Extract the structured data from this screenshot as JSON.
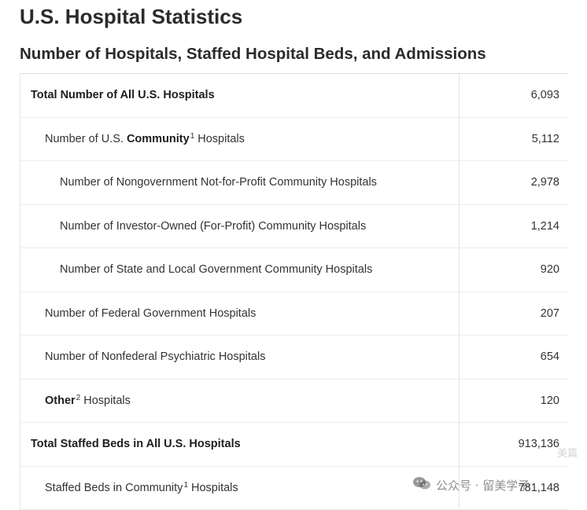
{
  "page": {
    "title": "U.S. Hospital Statistics",
    "section_title": "Number of Hospitals, Staffed Hospital Beds, and Admissions"
  },
  "rows": [
    {
      "label": "Total Number of All U.S. Hospitals",
      "value": "6,093"
    },
    {
      "pre": "Number of U.S. ",
      "bold": "Community",
      "sup": "1",
      "post": "Hospitals",
      "value": "5,112"
    },
    {
      "label": "Number of Nongovernment Not-for-Profit Community Hospitals",
      "value": "2,978"
    },
    {
      "label": "Number of Investor-Owned (For-Profit) Community Hospitals",
      "value": "1,214"
    },
    {
      "label": "Number of State and Local Government Community Hospitals",
      "value": "920"
    },
    {
      "label": "Number of Federal Government Hospitals",
      "value": "207"
    },
    {
      "label": "Number of Nonfederal Psychiatric Hospitals",
      "value": "654"
    },
    {
      "bold": "Other",
      "sup": "2",
      "post": "Hospitals",
      "value": "120"
    },
    {
      "label": "Total Staffed Beds in All U.S. Hospitals",
      "value": "913,136"
    },
    {
      "pre": "Staffed Beds in Community",
      "sup": "1",
      "post": "Hospitals",
      "value": "781,148"
    }
  ],
  "watermarks": {
    "top": "美篇",
    "bottom": "公众号 · 留美学子"
  }
}
